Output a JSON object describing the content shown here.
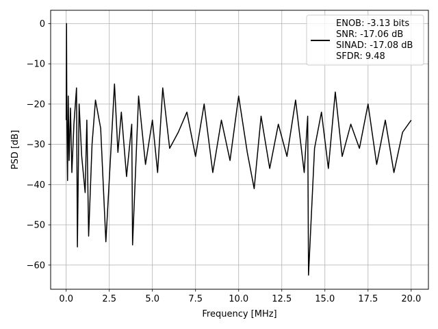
{
  "chart_data": {
    "type": "line",
    "title": "",
    "xlabel": "Frequency [MHz]",
    "ylabel": "PSD [dB]",
    "xlim": [
      -0.9,
      21.0
    ],
    "ylim": [
      -66,
      3.3
    ],
    "xticks": [
      0.0,
      2.5,
      5.0,
      7.5,
      10.0,
      12.5,
      15.0,
      17.5,
      20.0
    ],
    "xtick_labels": [
      "0.0",
      "2.5",
      "5.0",
      "7.5",
      "10.0",
      "12.5",
      "15.0",
      "17.5",
      "20.0"
    ],
    "yticks": [
      0,
      -10,
      -20,
      -30,
      -40,
      -50,
      -60
    ],
    "ytick_labels": [
      "0",
      "−10",
      "−20",
      "−30",
      "−40",
      "−50",
      "−60"
    ],
    "grid": true,
    "legend_position": "top-right",
    "line_color": "#000000",
    "legend": [
      "ENOB: -3.13 bits",
      "SNR: -17.06 dB",
      "SINAD: -17.08 dB",
      "SFDR: 9.48"
    ],
    "series": [
      {
        "x": [
          0.0,
          0.02,
          0.04,
          0.08,
          0.12,
          0.17,
          0.25,
          0.33,
          0.45,
          0.6,
          0.65,
          0.75,
          0.9,
          1.1,
          1.2,
          1.3,
          1.5,
          1.7,
          2.0,
          2.3,
          2.6,
          2.8,
          3.0,
          3.2,
          3.5,
          3.8,
          3.85,
          4.2,
          4.6,
          5.0,
          5.3,
          5.6,
          6.0,
          6.5,
          7.0,
          7.5,
          8.0,
          8.5,
          9.0,
          9.5,
          10.0,
          10.5,
          10.9,
          11.3,
          11.8,
          12.3,
          12.8,
          13.3,
          13.8,
          14.0,
          14.05,
          14.4,
          14.8,
          15.2,
          15.6,
          16.0,
          16.5,
          17.0,
          17.5,
          18.0,
          18.5,
          19.0,
          19.5,
          20.0
        ],
        "y": [
          -24,
          0,
          -24,
          -39,
          -18,
          -34,
          -21,
          -37,
          -25,
          -16,
          -55.5,
          -20,
          -33,
          -42,
          -24,
          -52.8,
          -30,
          -19,
          -26,
          -54.2,
          -31,
          -15,
          -32,
          -22,
          -38,
          -25,
          -55,
          -18,
          -35,
          -24,
          -37,
          -16,
          -31,
          -27,
          -22,
          -33,
          -20,
          -37,
          -24,
          -34,
          -18,
          -32,
          -41,
          -23,
          -36,
          -25,
          -33,
          -19,
          -37,
          -23,
          -62.5,
          -31,
          -22,
          -36,
          -17,
          -33,
          -25,
          -31,
          -20,
          -35,
          -24,
          -37,
          -27,
          -24
        ]
      }
    ]
  }
}
